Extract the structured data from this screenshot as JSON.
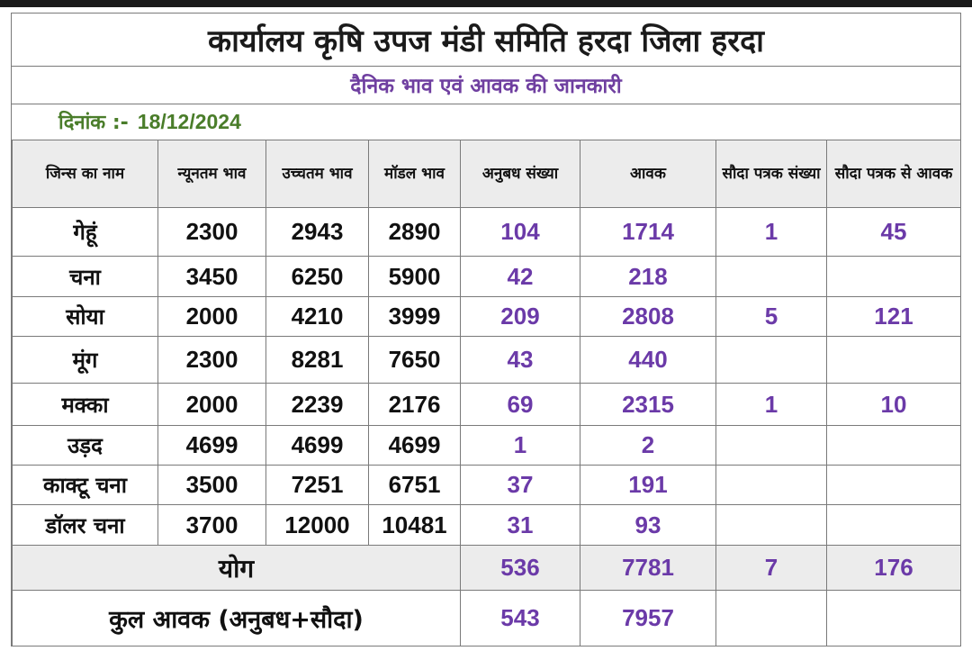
{
  "header": {
    "title": "कार्यालय कृषि उपज मंडी समिति हरदा जिला हरदा",
    "subtitle": "दैनिक भाव एवं आवक की जानकारी",
    "date_label": "दिनांक :-",
    "date_value": "18/12/2024"
  },
  "table": {
    "columns": [
      "जिन्स का नाम",
      "न्यूनतम भाव",
      "उच्चतम भाव",
      "मॉडल भाव",
      "अनुबध संख्या",
      "आवक",
      "सौदा पत्रक संख्या",
      "सौदा पत्रक से आवक"
    ],
    "rows": [
      {
        "name": "गेहूं",
        "min": "2300",
        "max": "2943",
        "model": "2890",
        "anubandh": "104",
        "aavak": "1714",
        "sauda_count": "1",
        "sauda_aavak": "45"
      },
      {
        "name": "चना",
        "min": "3450",
        "max": "6250",
        "model": "5900",
        "anubandh": "42",
        "aavak": "218",
        "sauda_count": "",
        "sauda_aavak": ""
      },
      {
        "name": "सोया",
        "min": "2000",
        "max": "4210",
        "model": "3999",
        "anubandh": "209",
        "aavak": "2808",
        "sauda_count": "5",
        "sauda_aavak": "121"
      },
      {
        "name": "मूंग",
        "min": "2300",
        "max": "8281",
        "model": "7650",
        "anubandh": "43",
        "aavak": "440",
        "sauda_count": "",
        "sauda_aavak": ""
      },
      {
        "name": "मक्का",
        "min": "2000",
        "max": "2239",
        "model": "2176",
        "anubandh": "69",
        "aavak": "2315",
        "sauda_count": "1",
        "sauda_aavak": "10"
      },
      {
        "name": "उड़द",
        "min": "4699",
        "max": "4699",
        "model": "4699",
        "anubandh": "1",
        "aavak": "2",
        "sauda_count": "",
        "sauda_aavak": ""
      },
      {
        "name": "काक्टू चना",
        "min": "3500",
        "max": "7251",
        "model": "6751",
        "anubandh": "37",
        "aavak": "191",
        "sauda_count": "",
        "sauda_aavak": ""
      },
      {
        "name": "डॉलर चना",
        "min": "3700",
        "max": "12000",
        "model": "10481",
        "anubandh": "31",
        "aavak": "93",
        "sauda_count": "",
        "sauda_aavak": ""
      }
    ],
    "total": {
      "label": "योग",
      "anubandh": "536",
      "aavak": "7781",
      "sauda_count": "7",
      "sauda_aavak": "176"
    },
    "grand_total": {
      "label": "कुल आवक (अनुबध+सौदा)",
      "anubandh": "543",
      "aavak": "7957"
    }
  },
  "colors": {
    "accent_purple": "#6b3aa8",
    "date_green": "#4a7d2a",
    "subtitle_purple": "#6f3fa0"
  }
}
